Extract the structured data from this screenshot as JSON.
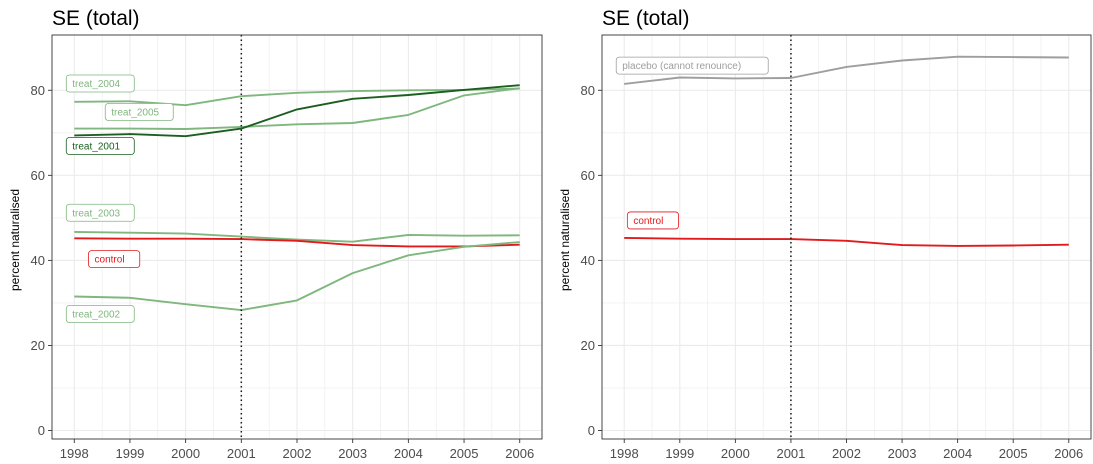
{
  "colors": {
    "background": "#ffffff",
    "panel_border": "#333333",
    "grid": "#ebebeb",
    "control": "#e31a1c",
    "placebo": "#9e9e9e",
    "treat_light": "#7fb77e",
    "treat_dark": "#1b5e20",
    "vline": "#1a1a1a",
    "axis_text": "#4d4d4d"
  },
  "chart_data": [
    {
      "type": "line",
      "title": "SE (total)",
      "xlabel": "",
      "ylabel": "percent naturalised",
      "x": [
        1998,
        1999,
        2000,
        2001,
        2002,
        2003,
        2004,
        2005,
        2006
      ],
      "xlim": [
        1997.6,
        2006.4
      ],
      "ylim": [
        -2,
        93
      ],
      "yticks": [
        0,
        20,
        40,
        60,
        80
      ],
      "vline_x": 2001,
      "grid": true,
      "legend": "none",
      "series": [
        {
          "name": "treat_2004",
          "color_key": "treat_light",
          "values": [
            77.3,
            77.4,
            76.5,
            78.6,
            79.4,
            79.8,
            80.0,
            80.1,
            80.4
          ],
          "label": "treat_2004",
          "label_x": 1998,
          "label_y": 81.6
        },
        {
          "name": "treat_2005",
          "color_key": "treat_light",
          "values": [
            71.0,
            71.0,
            70.9,
            71.4,
            72.0,
            72.3,
            74.2,
            78.8,
            80.5
          ],
          "label": "treat_2005",
          "label_x": 1998.7,
          "label_y": 74.9
        },
        {
          "name": "treat_2001",
          "color_key": "treat_dark",
          "values": [
            69.4,
            69.7,
            69.2,
            71.0,
            75.5,
            78.0,
            78.9,
            80.1,
            81.2
          ],
          "label": "treat_2001",
          "label_x": 1998,
          "label_y": 66.9
        },
        {
          "name": "treat_2003",
          "color_key": "treat_light",
          "values": [
            46.7,
            46.5,
            46.3,
            45.6,
            44.9,
            44.4,
            46.0,
            45.8,
            45.9
          ],
          "label": "treat_2003",
          "label_x": 1998,
          "label_y": 51.2
        },
        {
          "name": "control",
          "color_key": "control",
          "values": [
            45.2,
            45.1,
            45.1,
            45.0,
            44.6,
            43.6,
            43.3,
            43.3,
            43.7
          ],
          "label": "control",
          "label_x": 1998.4,
          "label_y": 40.3
        },
        {
          "name": "treat_2002",
          "color_key": "treat_light",
          "values": [
            31.5,
            31.2,
            29.7,
            28.3,
            30.6,
            37.0,
            41.2,
            43.2,
            44.3
          ],
          "label": "treat_2002",
          "label_x": 1998,
          "label_y": 27.4
        }
      ]
    },
    {
      "type": "line",
      "title": "SE (total)",
      "xlabel": "",
      "ylabel": "percent naturalised",
      "x": [
        1998,
        1999,
        2000,
        2001,
        2002,
        2003,
        2004,
        2005,
        2006
      ],
      "xlim": [
        1997.6,
        2006.4
      ],
      "ylim": [
        -2,
        93
      ],
      "yticks": [
        0,
        20,
        40,
        60,
        80
      ],
      "vline_x": 2001,
      "grid": true,
      "legend": "none",
      "series": [
        {
          "name": "placebo (cannot renounce)",
          "color_key": "placebo",
          "values": [
            81.5,
            83.0,
            82.8,
            82.9,
            85.5,
            87.0,
            87.9,
            87.8,
            87.7
          ],
          "label": "placebo (cannot renounce)",
          "label_x": 1998,
          "label_y": 85.8
        },
        {
          "name": "control",
          "color_key": "control",
          "values": [
            45.3,
            45.1,
            45.0,
            45.0,
            44.6,
            43.6,
            43.4,
            43.5,
            43.7
          ],
          "label": "control",
          "label_x": 1998.2,
          "label_y": 49.4
        }
      ]
    }
  ]
}
